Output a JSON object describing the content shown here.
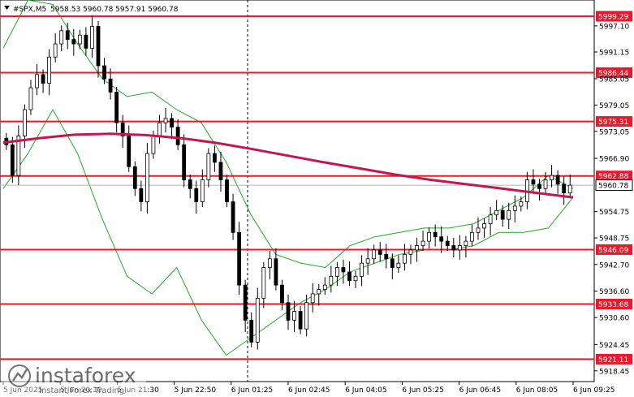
{
  "window": {
    "symbol_caption": "#SPX,M5",
    "ohlc_caption": "5958.53 5960.78 5957.91 5960.78"
  },
  "colors": {
    "level_line": "#e8192c",
    "ma_line": "#c2184f",
    "bollinger": "#22a82c",
    "candle": "#000000",
    "background": "#ffffff"
  },
  "chart_data": {
    "type": "candlestick",
    "symbol": "#SPX",
    "timeframe": "M5",
    "ylim": [
      5916.0,
      6003.0
    ],
    "y_ticks": [
      "5997.10",
      "5991.15",
      "5985.05",
      "5979.05",
      "5973.05",
      "5966.90",
      "5954.75",
      "5948.75",
      "5942.70",
      "5936.60",
      "5930.60",
      "5924.45",
      "5918.45"
    ],
    "x_ticks": [
      "5 Jun 2025",
      "5 Jun 20:10",
      "5 Jun 21:30",
      "5 Jun 22:50",
      "6 Jun 01:25",
      "6 Jun 02:45",
      "6 Jun 04:05",
      "6 Jun 05:25",
      "6 Jun 06:45",
      "6 Jun 08:05",
      "6 Jun 09:25"
    ],
    "levels": [
      5999.29,
      5986.44,
      5975.31,
      5962.88,
      5946.09,
      5933.68,
      5921.11
    ],
    "current_price": 5960.78,
    "closes": [
      5970,
      5963,
      5972,
      5978,
      5983,
      5986,
      5984,
      5990,
      5993,
      5996,
      5994,
      5993,
      5995,
      5992,
      5997,
      5988,
      5985,
      5982,
      5975,
      5972,
      5965,
      5960,
      5957,
      5968,
      5972,
      5975,
      5976,
      5974,
      5970,
      5962,
      5960,
      5957,
      5962,
      5968,
      5966,
      5962,
      5957,
      5950,
      5938,
      5930,
      5925,
      5935,
      5942,
      5944,
      5938,
      5934,
      5930,
      5932,
      5928,
      5934,
      5936,
      5937,
      5938,
      5940,
      5942,
      5941,
      5939,
      5940,
      5943,
      5944,
      5946,
      5945,
      5944,
      5942,
      5943,
      5945,
      5946,
      5947,
      5948,
      5950,
      5949,
      5948,
      5947,
      5946,
      5947,
      5948,
      5950,
      5951,
      5952,
      5954,
      5955,
      5953,
      5955,
      5956,
      5957,
      5962,
      5961,
      5960,
      5962,
      5963,
      5961,
      5959,
      5960.78
    ],
    "ma_values": [
      5970.5,
      5971.5,
      5972.3,
      5972.5,
      5972.2,
      5971.5,
      5970.4,
      5969.0,
      5967.5,
      5966.0,
      5964.6,
      5963.2,
      5962.0,
      5961.0,
      5960.0,
      5959.0,
      5958.0
    ],
    "bb_upper": [
      5992,
      6003,
      6002,
      5993,
      5985,
      5981,
      5982,
      5978,
      5975,
      5966,
      5954,
      5945,
      5943,
      5942,
      5947,
      5949,
      5950,
      5951,
      5951,
      5952,
      5955,
      5958,
      5963,
      5960
    ],
    "bb_lower": [
      5960,
      5968,
      5978,
      5968,
      5953,
      5940,
      5936,
      5942,
      5930,
      5922,
      5926,
      5930,
      5934,
      5937,
      5941,
      5943,
      5945,
      5946,
      5946,
      5947,
      5950,
      5950,
      5951,
      5958
    ]
  },
  "watermark": {
    "brand": "instaforex",
    "tagline": "Instant Forex Trading"
  }
}
